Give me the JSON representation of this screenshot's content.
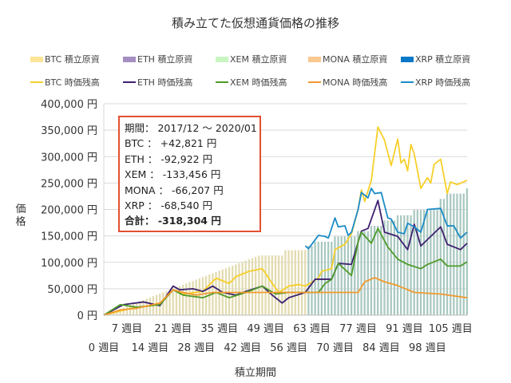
{
  "chart_data": {
    "type": "bar+line",
    "title": "積み立てた仮想通貨価格の推移",
    "xlabel": "積立期間",
    "ylabel": "価格",
    "ylim": [
      0,
      400000
    ],
    "yticks": [
      "0 円",
      "50,000 円",
      "100,000 円",
      "150,000 円",
      "200,000 円",
      "250,000 円",
      "300,000 円",
      "350,000 円",
      "400,000 円"
    ],
    "xticks_top": [
      "7 週目",
      "21 週目",
      "35 週目",
      "49 週目",
      "63 週目",
      "77 週目",
      "91 週目",
      "105 週目"
    ],
    "xticks_bottom": [
      "0 週目",
      "14 週目",
      "28 週目",
      "42 週目",
      "56 週目",
      "70 週目",
      "84 週目",
      "98 週目"
    ],
    "xtick_weeks_top": [
      7,
      21,
      35,
      49,
      63,
      77,
      91,
      105
    ],
    "xtick_weeks_bottom": [
      0,
      14,
      28,
      42,
      56,
      70,
      84,
      98
    ],
    "xlim": [
      0,
      110
    ],
    "grid": true,
    "legend_position": "top",
    "bar_series": [
      {
        "name": "BTC 積立原資",
        "color": "#fce596",
        "bar_color": "#e3dbb0"
      },
      {
        "name": "ETH 積立原資",
        "color": "#a58fc2"
      },
      {
        "name": "XEM 積立原資",
        "color": "#c8f5c0"
      },
      {
        "name": "MONA 積立原資",
        "color": "#fac890"
      },
      {
        "name": "XRP 積立原資",
        "color": "#0a78c8",
        "bar_color": "#a9c8c0"
      }
    ],
    "principal_bars": [
      0,
      2400,
      4800,
      7200,
      9600,
      12000,
      14400,
      16800,
      19200,
      21600,
      24000,
      26400,
      28800,
      31200,
      33600,
      36000,
      38400,
      40800,
      43200,
      45600,
      48000,
      50400,
      52800,
      55200,
      57600,
      60000,
      62400,
      64800,
      67200,
      69600,
      72000,
      74400,
      76800,
      79200,
      81600,
      84000,
      86400,
      88800,
      91200,
      93600,
      96000,
      98400,
      100800,
      103200,
      105600,
      108000,
      110400,
      112800,
      113000,
      113000,
      113000,
      113000,
      113000,
      113000,
      113000,
      123000,
      123000,
      123000,
      123000,
      123000,
      123000,
      123000,
      131000,
      131000,
      139000,
      139000,
      139000,
      139000,
      139000,
      139000,
      149000,
      149000,
      149000,
      149000,
      149000,
      149000,
      149000,
      159000,
      159000,
      159000,
      159000,
      169000,
      169000,
      169000,
      169000,
      179000,
      179000,
      179000,
      179000,
      189000,
      189000,
      189000,
      189000,
      189000,
      199000,
      199000,
      199000,
      199000,
      199000,
      199000,
      199000,
      199000,
      220000,
      220000,
      230000,
      230000,
      230000,
      230000,
      230000,
      230000,
      240000
    ],
    "line_series": [
      {
        "name": "BTC 時価残高",
        "color": "#f7cf2a",
        "points": [
          [
            0,
            0
          ],
          [
            8,
            12600
          ],
          [
            17,
            20000
          ],
          [
            21,
            48000
          ],
          [
            24,
            40000
          ],
          [
            30,
            45000
          ],
          [
            34,
            70000
          ],
          [
            38,
            60000
          ],
          [
            40,
            73000
          ],
          [
            44,
            83000
          ],
          [
            48,
            88000
          ],
          [
            51,
            60000
          ],
          [
            53,
            43000
          ],
          [
            56,
            55000
          ],
          [
            59,
            58000
          ],
          [
            61,
            55000
          ],
          [
            65,
            70000
          ],
          [
            66,
            83000
          ],
          [
            69,
            88000
          ],
          [
            70,
            124000
          ],
          [
            73,
            134000
          ],
          [
            75,
            154000
          ],
          [
            77,
            200000
          ],
          [
            78,
            237000
          ],
          [
            79,
            215000
          ],
          [
            81,
            255000
          ],
          [
            83,
            356000
          ],
          [
            85,
            331000
          ],
          [
            87,
            283000
          ],
          [
            89,
            333000
          ],
          [
            90,
            288000
          ],
          [
            91,
            295000
          ],
          [
            92,
            273000
          ],
          [
            93,
            323000
          ],
          [
            94,
            305000
          ],
          [
            96,
            240000
          ],
          [
            98,
            260000
          ],
          [
            99,
            250000
          ],
          [
            100,
            285000
          ],
          [
            102,
            295000
          ],
          [
            104,
            230000
          ],
          [
            105,
            252000
          ],
          [
            107,
            247000
          ],
          [
            110,
            255000
          ]
        ]
      },
      {
        "name": "ETH 時価残高",
        "color": "#3e2170",
        "points": [
          [
            0,
            0
          ],
          [
            6,
            20000
          ],
          [
            12,
            25000
          ],
          [
            17,
            18000
          ],
          [
            21,
            55000
          ],
          [
            23,
            48000
          ],
          [
            27,
            50000
          ],
          [
            30,
            45000
          ],
          [
            33,
            55000
          ],
          [
            36,
            43000
          ],
          [
            40,
            38000
          ],
          [
            43,
            45000
          ],
          [
            48,
            55000
          ],
          [
            51,
            38000
          ],
          [
            54,
            23000
          ],
          [
            56,
            33000
          ],
          [
            61,
            43000
          ],
          [
            64,
            68000
          ],
          [
            66,
            68000
          ],
          [
            69,
            68000
          ],
          [
            71,
            98000
          ],
          [
            75,
            96000
          ],
          [
            78,
            159000
          ],
          [
            80,
            164000
          ],
          [
            83,
            217000
          ],
          [
            85,
            157000
          ],
          [
            89,
            149000
          ],
          [
            92,
            124000
          ],
          [
            94,
            172000
          ],
          [
            96,
            131000
          ],
          [
            99,
            149000
          ],
          [
            102,
            167000
          ],
          [
            104,
            134000
          ],
          [
            108,
            124000
          ],
          [
            110,
            136000
          ]
        ]
      },
      {
        "name": "XEM 時価残高",
        "color": "#4f9b2b",
        "points": [
          [
            0,
            0
          ],
          [
            5,
            20000
          ],
          [
            10,
            15000
          ],
          [
            17,
            20000
          ],
          [
            21,
            48000
          ],
          [
            24,
            38000
          ],
          [
            30,
            33000
          ],
          [
            34,
            43000
          ],
          [
            38,
            33000
          ],
          [
            43,
            43000
          ],
          [
            48,
            55000
          ],
          [
            52,
            40000
          ],
          [
            56,
            43000
          ],
          [
            61,
            43000
          ],
          [
            65,
            43000
          ],
          [
            67,
            60000
          ],
          [
            69,
            68000
          ],
          [
            71,
            98000
          ],
          [
            75,
            75000
          ],
          [
            77,
            139000
          ],
          [
            78,
            157000
          ],
          [
            81,
            136000
          ],
          [
            83,
            164000
          ],
          [
            86,
            129000
          ],
          [
            89,
            106000
          ],
          [
            92,
            96000
          ],
          [
            96,
            88000
          ],
          [
            98,
            96000
          ],
          [
            102,
            106000
          ],
          [
            104,
            93000
          ],
          [
            108,
            93000
          ],
          [
            110,
            101000
          ]
        ]
      },
      {
        "name": "MONA 時価残高",
        "color": "#f29a2e",
        "points": [
          [
            0,
            0
          ],
          [
            5,
            10000
          ],
          [
            10,
            13000
          ],
          [
            17,
            23000
          ],
          [
            21,
            48000
          ],
          [
            24,
            43000
          ],
          [
            28,
            38000
          ],
          [
            33,
            43000
          ],
          [
            38,
            43000
          ],
          [
            44,
            43000
          ],
          [
            77,
            43000
          ],
          [
            79,
            63000
          ],
          [
            82,
            71000
          ],
          [
            85,
            63000
          ],
          [
            89,
            56000
          ],
          [
            94,
            43000
          ],
          [
            102,
            40000
          ],
          [
            110,
            33000
          ]
        ]
      },
      {
        "name": "XRP 時価残高",
        "color": "#1b8bc8",
        "points": [
          [
            61,
            131000
          ],
          [
            62,
            126000
          ],
          [
            65,
            151000
          ],
          [
            67,
            149000
          ],
          [
            68,
            146000
          ],
          [
            70,
            184000
          ],
          [
            71,
            167000
          ],
          [
            73,
            169000
          ],
          [
            74,
            151000
          ],
          [
            75,
            157000
          ],
          [
            77,
            200000
          ],
          [
            78,
            232000
          ],
          [
            79,
            227000
          ],
          [
            80,
            222000
          ],
          [
            81,
            240000
          ],
          [
            82,
            230000
          ],
          [
            84,
            232000
          ],
          [
            86,
            184000
          ],
          [
            87,
            182000
          ],
          [
            89,
            157000
          ],
          [
            91,
            154000
          ],
          [
            92,
            174000
          ],
          [
            94,
            167000
          ],
          [
            96,
            157000
          ],
          [
            98,
            200000
          ],
          [
            102,
            202000
          ],
          [
            104,
            169000
          ],
          [
            106,
            169000
          ],
          [
            108,
            146000
          ],
          [
            110,
            157000
          ]
        ]
      }
    ],
    "annotation": {
      "period": "期間： 2017/12 ～ 2020/01",
      "btc": "BTC ： +42,821 円",
      "eth": "ETH ： -92,922 円",
      "xem": "XEM ： -133,456 円",
      "mona": "MONA ： -66,207 円",
      "xrp": "XRP ： -68,540 円",
      "total": "合計： -318,304 円"
    }
  }
}
